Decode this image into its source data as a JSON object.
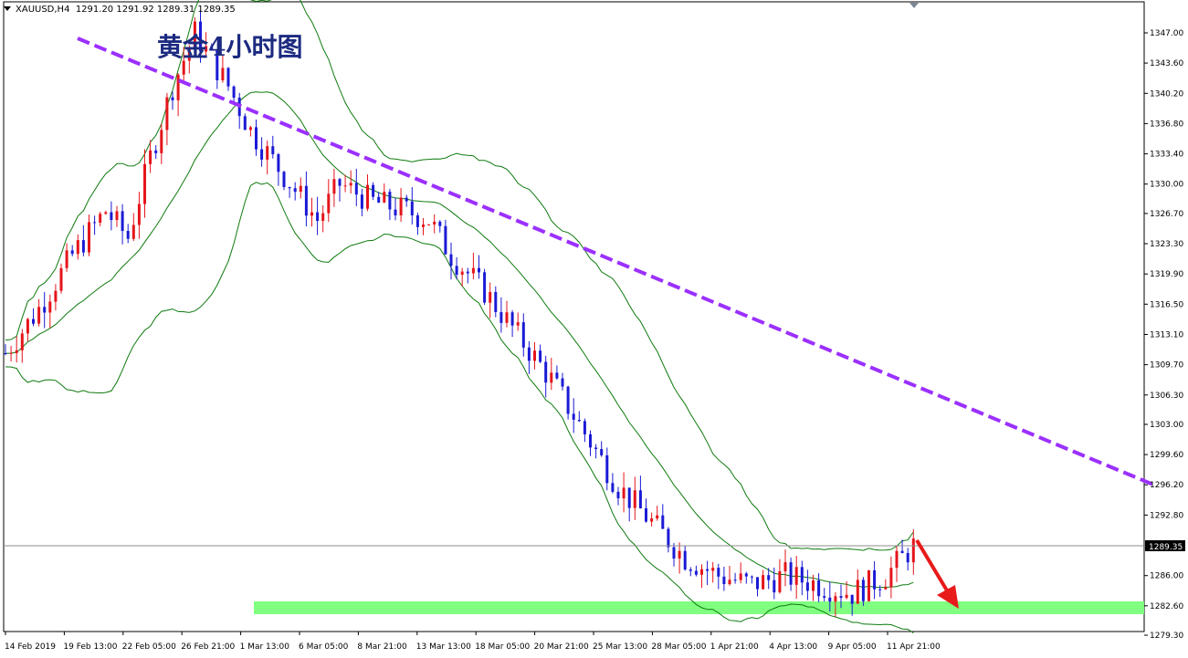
{
  "header": {
    "symbol": "XAUUSD,H4",
    "ohlc": "1291.20 1291.92 1289.31 1289.35"
  },
  "colors": {
    "bull": "#e5151b",
    "bear": "#1a1ad6",
    "bands": "#0e7a0e",
    "trendline": "#9b30ff",
    "support_zone": "#80ff80",
    "arrow": "#e81a1a",
    "title": "#1c2a80"
  },
  "chart_data": {
    "type": "candlestick",
    "title": "黄金4小时图",
    "symbol": "XAUUSD",
    "timeframe": "H4",
    "ylim": [
      1278.0,
      1349.0
    ],
    "y_ticks": [
      "1347.00",
      "1343.60",
      "1340.20",
      "1336.80",
      "1333.40",
      "1330.00",
      "1326.70",
      "1323.30",
      "1319.90",
      "1316.50",
      "1313.10",
      "1309.70",
      "1306.30",
      "1303.00",
      "1299.60",
      "1296.20",
      "1292.80",
      "1289.35",
      "1286.00",
      "1282.60",
      "1279.30"
    ],
    "current_price": 1289.35,
    "x_ticks": [
      "14 Feb 2019",
      "19 Feb 13:00",
      "22 Feb 05:00",
      "26 Feb 21:00",
      "1 Mar 13:00",
      "6 Mar 05:00",
      "8 Mar 21:00",
      "13 Mar 13:00",
      "18 Mar 05:00",
      "20 Mar 21:00",
      "25 Mar 13:00",
      "28 Mar 05:00",
      "1 Apr 21:00",
      "4 Apr 13:00",
      "9 Apr 05:00",
      "11 Apr 21:00"
    ],
    "candle_count": 164,
    "price_path": [
      [
        0,
        1311
      ],
      [
        6,
        1316
      ],
      [
        12,
        1322
      ],
      [
        18,
        1327
      ],
      [
        22,
        1324
      ],
      [
        26,
        1333
      ],
      [
        30,
        1341
      ],
      [
        34,
        1347
      ],
      [
        40,
        1341
      ],
      [
        44,
        1336
      ],
      [
        50,
        1331
      ],
      [
        56,
        1326
      ],
      [
        60,
        1330
      ],
      [
        66,
        1328
      ],
      [
        72,
        1327
      ],
      [
        76,
        1326
      ],
      [
        80,
        1322
      ],
      [
        86,
        1318
      ],
      [
        92,
        1313
      ],
      [
        98,
        1308
      ],
      [
        104,
        1302
      ],
      [
        110,
        1296
      ],
      [
        116,
        1292
      ],
      [
        122,
        1288
      ],
      [
        128,
        1286
      ],
      [
        134,
        1285
      ],
      [
        140,
        1286
      ],
      [
        146,
        1285
      ],
      [
        152,
        1284
      ],
      [
        158,
        1286
      ],
      [
        164,
        1290
      ]
    ],
    "support_zone": [
      1281.5,
      1283.0
    ],
    "trendline": {
      "start": {
        "x_label": "19 Feb 13:00",
        "price": 1347.0
      },
      "points_through": [
        {
          "x_label": "25 Mar 13:00",
          "price": 1323.0
        },
        {
          "x_label": "9 Apr 05:00",
          "price": 1309.7
        }
      ]
    },
    "annotation": "down arrow toward support zone"
  }
}
